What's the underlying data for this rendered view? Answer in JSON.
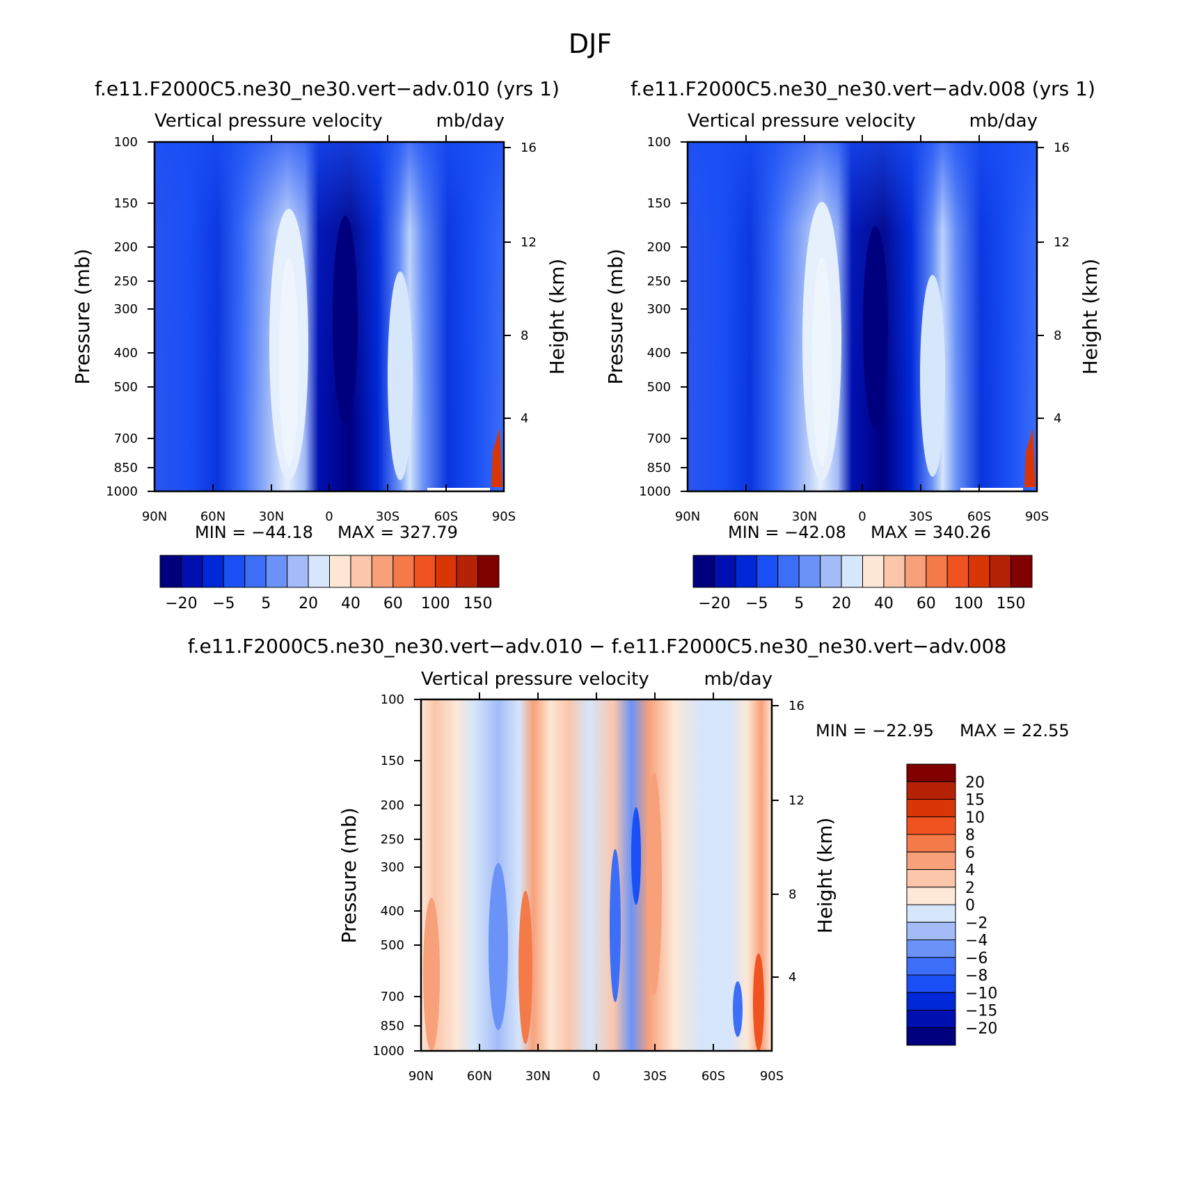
{
  "figure": {
    "title": "DJF"
  },
  "chart_data": [
    {
      "type": "heatmap",
      "case_title": "f.e11.F2000C5.ne30_ne30.vert−adv.010 (yrs 1)",
      "title": "Vertical pressure velocity",
      "units": "mb/day",
      "xlabel": "",
      "ylabel": "Pressure (mb)",
      "ylabel2": "Height (km)",
      "x_ticks": [
        "90N",
        "60N",
        "30N",
        "0",
        "30S",
        "60S",
        "90S"
      ],
      "x_values": [
        90,
        60,
        30,
        0,
        -30,
        -60,
        -90
      ],
      "y_ticks": [
        100,
        150,
        200,
        250,
        300,
        400,
        500,
        700,
        850,
        1000
      ],
      "y2_ticks": [
        16,
        12,
        8,
        4
      ],
      "ylim": [
        1000,
        100
      ],
      "y_scale": "log",
      "min_text": "MIN = −44.18",
      "max_text": "MAX = 327.79",
      "min": -44.18,
      "max": 327.79,
      "colorbar": {
        "orientation": "horizontal",
        "levels": [
          -20,
          -15,
          -10,
          -5,
          0,
          5,
          10,
          20,
          30,
          40,
          50,
          60,
          80,
          100,
          120,
          150
        ],
        "labels": [
          "−20",
          "−5",
          "5",
          "20",
          "40",
          "60",
          "100",
          "150"
        ],
        "colors": [
          "#00007f",
          "#0010b0",
          "#0028d8",
          "#1a4ff5",
          "#3c6ef8",
          "#6b93f7",
          "#a3bcf7",
          "#d6e6fb",
          "#fde7d6",
          "#fbc6aa",
          "#f8a07a",
          "#f47a4a",
          "#f0531f",
          "#d93608",
          "#b52205",
          "#800000"
        ]
      }
    },
    {
      "type": "heatmap",
      "case_title": "f.e11.F2000C5.ne30_ne30.vert−adv.008 (yrs 1)",
      "title": "Vertical pressure velocity",
      "units": "mb/day",
      "xlabel": "",
      "ylabel": "Pressure (mb)",
      "ylabel2": "Height (km)",
      "x_ticks": [
        "90N",
        "60N",
        "30N",
        "0",
        "30S",
        "60S",
        "90S"
      ],
      "x_values": [
        90,
        60,
        30,
        0,
        -30,
        -60,
        -90
      ],
      "y_ticks": [
        100,
        150,
        200,
        250,
        300,
        400,
        500,
        700,
        850,
        1000
      ],
      "y2_ticks": [
        16,
        12,
        8,
        4
      ],
      "ylim": [
        1000,
        100
      ],
      "y_scale": "log",
      "min_text": "MIN = −42.08",
      "max_text": "MAX = 340.26",
      "min": -42.08,
      "max": 340.26,
      "colorbar": {
        "orientation": "horizontal",
        "levels": [
          -20,
          -15,
          -10,
          -5,
          0,
          5,
          10,
          20,
          30,
          40,
          50,
          60,
          80,
          100,
          120,
          150
        ],
        "labels": [
          "−20",
          "−5",
          "5",
          "20",
          "40",
          "60",
          "100",
          "150"
        ],
        "colors": [
          "#00007f",
          "#0010b0",
          "#0028d8",
          "#1a4ff5",
          "#3c6ef8",
          "#6b93f7",
          "#a3bcf7",
          "#d6e6fb",
          "#fde7d6",
          "#fbc6aa",
          "#f8a07a",
          "#f47a4a",
          "#f0531f",
          "#d93608",
          "#b52205",
          "#800000"
        ]
      }
    },
    {
      "type": "heatmap",
      "case_title": "f.e11.F2000C5.ne30_ne30.vert−adv.010 − f.e11.F2000C5.ne30_ne30.vert−adv.008",
      "title": "Vertical pressure velocity",
      "units": "mb/day",
      "xlabel": "",
      "ylabel": "Pressure (mb)",
      "ylabel2": "Height (km)",
      "x_ticks": [
        "90N",
        "60N",
        "30N",
        "0",
        "30S",
        "60S",
        "90S"
      ],
      "x_values": [
        90,
        60,
        30,
        0,
        -30,
        -60,
        -90
      ],
      "y_ticks": [
        100,
        150,
        200,
        250,
        300,
        400,
        500,
        700,
        850,
        1000
      ],
      "y2_ticks": [
        16,
        12,
        8,
        4
      ],
      "ylim": [
        1000,
        100
      ],
      "y_scale": "log",
      "min_text": "MIN = −22.95",
      "max_text": "MAX = 22.55",
      "min": -22.95,
      "max": 22.55,
      "colorbar": {
        "orientation": "vertical",
        "levels": [
          20,
          15,
          10,
          8,
          6,
          4,
          2,
          0,
          -2,
          -4,
          -6,
          -8,
          -10,
          -15,
          -20
        ],
        "labels": [
          "20",
          "15",
          "10",
          "8",
          "6",
          "4",
          "2",
          "0",
          "−2",
          "−4",
          "−6",
          "−8",
          "−10",
          "−15",
          "−20"
        ],
        "colors": [
          "#800000",
          "#b52205",
          "#d93608",
          "#f0531f",
          "#f47a4a",
          "#f8a07a",
          "#fbc6aa",
          "#fde7d6",
          "#d6e6fb",
          "#a3bcf7",
          "#6b93f7",
          "#3c6ef8",
          "#1a4ff5",
          "#0028d8",
          "#0010b0",
          "#00007f"
        ]
      }
    }
  ]
}
